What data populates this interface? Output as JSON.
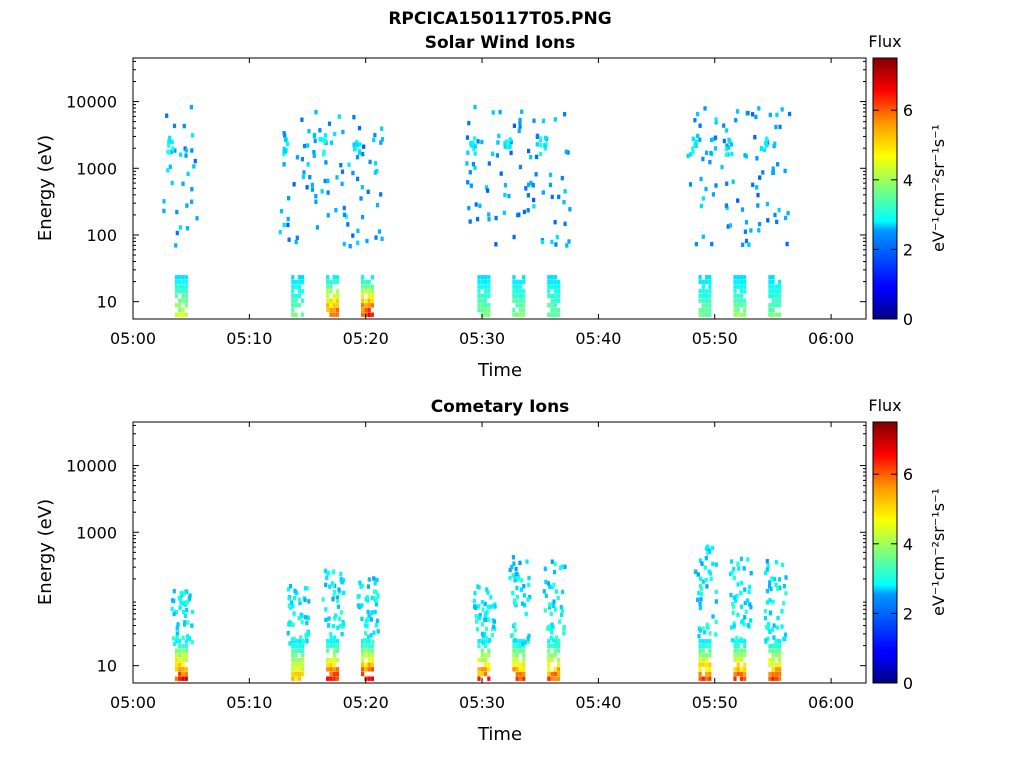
{
  "figure_title": "RPCICA150117T05.PNG",
  "colorbar": {
    "title": "Flux",
    "label": "eV⁻¹cm⁻²sr⁻¹s⁻¹",
    "ticks": [
      "0",
      "2",
      "4",
      "6"
    ],
    "range": [
      0,
      7.5
    ],
    "colormap": "jet"
  },
  "chart_data": [
    {
      "type": "heatmap",
      "title": "Solar Wind Ions",
      "xlabel": "Time",
      "ylabel": "Energy (eV)",
      "x_ticks": [
        "05:00",
        "05:10",
        "05:20",
        "05:30",
        "05:40",
        "05:50",
        "06:00"
      ],
      "y_ticks": [
        "10",
        "100",
        "1000",
        "10000"
      ],
      "xlim": [
        "05:00",
        "06:03"
      ],
      "ylim": [
        5.5,
        45000
      ],
      "yscale": "log",
      "bursts": [
        {
          "t": "05:04",
          "low_band_max_flux": 4.5,
          "high_energy_ion_flux_at_2000eV": 2.5
        },
        {
          "t": "05:14",
          "low_band_max_flux": 3.8,
          "high_energy_ion_flux_at_2000eV": 2.4
        },
        {
          "t": "05:17",
          "low_band_max_flux": 6.5,
          "high_energy_ion_flux_at_2000eV": 2.6
        },
        {
          "t": "05:20",
          "low_band_max_flux": 6.8,
          "high_energy_ion_flux_at_2000eV": 2.4
        },
        {
          "t": "05:30",
          "low_band_max_flux": 4.0,
          "high_energy_ion_flux_at_2000eV": 2.4
        },
        {
          "t": "05:33",
          "low_band_max_flux": 4.0,
          "high_energy_ion_flux_at_2000eV": 2.4
        },
        {
          "t": "05:36",
          "low_band_max_flux": 3.8,
          "high_energy_ion_flux_at_2000eV": 2.5
        },
        {
          "t": "05:49",
          "low_band_max_flux": 3.8,
          "high_energy_ion_flux_at_2000eV": 2.5
        },
        {
          "t": "05:52",
          "low_band_max_flux": 4.0,
          "high_energy_ion_flux_at_2000eV": 2.4
        },
        {
          "t": "05:55",
          "low_band_max_flux": 3.8,
          "high_energy_ion_flux_at_2000eV": 2.4
        }
      ]
    },
    {
      "type": "heatmap",
      "title": "Cometary Ions",
      "xlabel": "Time",
      "ylabel": "Energy (eV)",
      "x_ticks": [
        "05:00",
        "05:10",
        "05:20",
        "05:30",
        "05:40",
        "05:50",
        "06:00"
      ],
      "y_ticks": [
        "10",
        "1000",
        "10000"
      ],
      "xlim": [
        "05:00",
        "06:03"
      ],
      "ylim": [
        5.5,
        45000
      ],
      "yscale": "log",
      "bursts": [
        {
          "t": "05:04",
          "low_band_max_flux": 7.0,
          "upper_energy_eV": 150
        },
        {
          "t": "05:14",
          "low_band_max_flux": 5.5,
          "upper_energy_eV": 150
        },
        {
          "t": "05:17",
          "low_band_max_flux": 6.8,
          "upper_energy_eV": 250
        },
        {
          "t": "05:20",
          "low_band_max_flux": 7.2,
          "upper_energy_eV": 200
        },
        {
          "t": "05:30",
          "low_band_max_flux": 6.5,
          "upper_energy_eV": 150
        },
        {
          "t": "05:33",
          "low_band_max_flux": 6.5,
          "upper_energy_eV": 400
        },
        {
          "t": "05:36",
          "low_band_max_flux": 6.5,
          "upper_energy_eV": 400
        },
        {
          "t": "05:49",
          "low_band_max_flux": 6.5,
          "upper_energy_eV": 600
        },
        {
          "t": "05:52",
          "low_band_max_flux": 6.5,
          "upper_energy_eV": 400
        },
        {
          "t": "05:55",
          "low_band_max_flux": 6.5,
          "upper_energy_eV": 350
        }
      ]
    }
  ]
}
